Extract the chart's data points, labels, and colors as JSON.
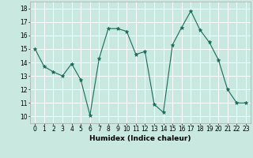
{
  "x": [
    0,
    1,
    2,
    3,
    4,
    5,
    6,
    7,
    8,
    9,
    10,
    11,
    12,
    13,
    14,
    15,
    16,
    17,
    18,
    19,
    20,
    21,
    22,
    23
  ],
  "y": [
    15.0,
    13.7,
    13.3,
    13.0,
    13.9,
    12.7,
    10.1,
    14.3,
    16.5,
    16.5,
    16.3,
    14.6,
    14.8,
    10.9,
    10.3,
    15.3,
    16.6,
    17.8,
    16.4,
    15.5,
    14.2,
    12.0,
    11.0,
    11.0
  ],
  "xlabel": "Humidex (Indice chaleur)",
  "line_color": "#1a6b5a",
  "bg_color": "#c8e8e0",
  "grid_color": "#ffffff",
  "xlim": [
    -0.5,
    23.5
  ],
  "ylim": [
    9.5,
    18.5
  ],
  "yticks": [
    10,
    11,
    12,
    13,
    14,
    15,
    16,
    17,
    18
  ],
  "xticks": [
    0,
    1,
    2,
    3,
    4,
    5,
    6,
    7,
    8,
    9,
    10,
    11,
    12,
    13,
    14,
    15,
    16,
    17,
    18,
    19,
    20,
    21,
    22,
    23
  ],
  "tick_fontsize": 5.5,
  "xlabel_fontsize": 6.5
}
